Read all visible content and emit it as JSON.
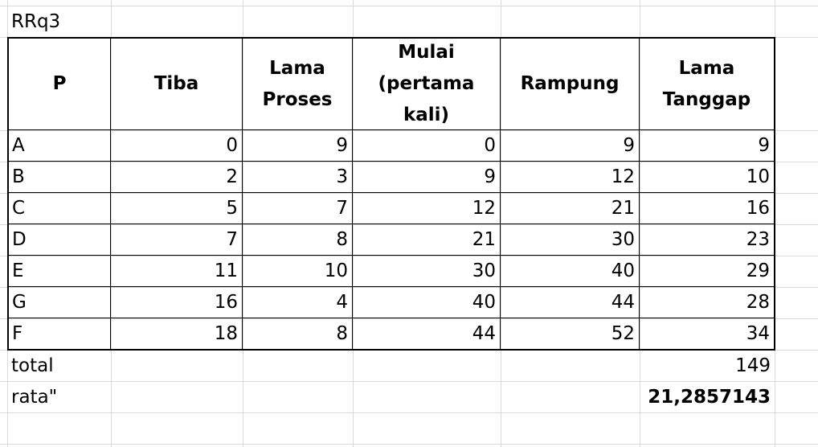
{
  "sheet_title": "RRq3",
  "headers": [
    "P",
    "Tiba",
    "Lama\nProses",
    "Mulai\n(pertama kali)",
    "Rampung",
    "Lama\nTanggap"
  ],
  "rows": [
    [
      "A",
      "0",
      "9",
      "0",
      "9",
      "9"
    ],
    [
      "B",
      "2",
      "3",
      "9",
      "12",
      "10"
    ],
    [
      "C",
      "5",
      "7",
      "12",
      "21",
      "16"
    ],
    [
      "D",
      "7",
      "8",
      "21",
      "30",
      "23"
    ],
    [
      "E",
      "11",
      "10",
      "30",
      "40",
      "29"
    ],
    [
      "G",
      "16",
      "4",
      "40",
      "44",
      "28"
    ],
    [
      "F",
      "18",
      "8",
      "44",
      "52",
      "34"
    ]
  ],
  "total": {
    "label": "total",
    "value": "149"
  },
  "average": {
    "label": "rata\"",
    "value": "21,2857143"
  }
}
